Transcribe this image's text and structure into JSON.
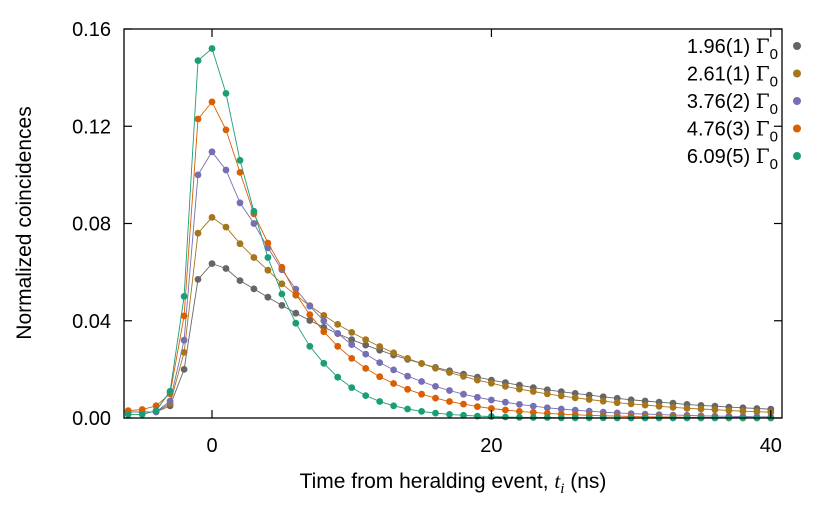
{
  "chart_data": {
    "type": "scatter",
    "xlabel_main": "Time from heralding event, ",
    "xlabel_var": "t",
    "xlabel_sub": "i",
    "xlabel_unit": " (ns)",
    "ylabel": "Normalized coincidences",
    "xlim": [
      -6.3,
      40.8
    ],
    "ylim": [
      0,
      0.16
    ],
    "x_ticks": [
      0,
      20,
      40
    ],
    "x_tick_labels": [
      "0",
      "20",
      "40"
    ],
    "y_ticks": [
      0,
      0.04,
      0.08,
      0.12,
      0.16
    ],
    "y_tick_labels": [
      "0.00",
      "0.04",
      "0.08",
      "0.12",
      "0.16"
    ],
    "grid": false,
    "legend_position": "top-right",
    "legend_symbol": "Γ",
    "legend_subscript": "0",
    "x": [
      -6,
      -5,
      -4,
      -3,
      -2,
      -1,
      0,
      1,
      2,
      3,
      4,
      5,
      6,
      7,
      8,
      9,
      10,
      11,
      12,
      13,
      14,
      15,
      16,
      17,
      18,
      19,
      20,
      21,
      22,
      23,
      24,
      25,
      26,
      27,
      28,
      29,
      30,
      31,
      32,
      33,
      34,
      35,
      36,
      37,
      38,
      39,
      40
    ],
    "series": [
      {
        "name": "1.96(1)",
        "color": "#666666",
        "values": [
          0.0025,
          0.0025,
          0.0025,
          0.005,
          0.02,
          0.057,
          0.0635,
          0.0615,
          0.0565,
          0.0531,
          0.0497,
          0.0463,
          0.0431,
          0.0401,
          0.0373,
          0.0347,
          0.0322,
          0.03,
          0.0279,
          0.0259,
          0.0241,
          0.0224,
          0.0208,
          0.0194,
          0.018,
          0.0168,
          0.0156,
          0.0145,
          0.0135,
          0.0125,
          0.0116,
          0.0108,
          0.0101,
          0.0094,
          0.0087,
          0.0081,
          0.0075,
          0.007,
          0.0065,
          0.0061,
          0.0056,
          0.0052,
          0.0049,
          0.0045,
          0.0042,
          0.0039,
          0.0036
        ]
      },
      {
        "name": "2.61(1)",
        "color": "#a6761d",
        "values": [
          0.0025,
          0.0025,
          0.0025,
          0.006,
          0.027,
          0.076,
          0.0825,
          0.0785,
          0.0717,
          0.066,
          0.0608,
          0.0552,
          0.0505,
          0.0462,
          0.0422,
          0.0385,
          0.0352,
          0.0322,
          0.0294,
          0.0268,
          0.0245,
          0.0224,
          0.0205,
          0.0187,
          0.0171,
          0.0156,
          0.0143,
          0.013,
          0.0119,
          0.0109,
          0.0099,
          0.0091,
          0.0083,
          0.0076,
          0.0069,
          0.0063,
          0.0058,
          0.0053,
          0.0048,
          0.0044,
          0.004,
          0.0037,
          0.0034,
          0.0031,
          0.0028,
          0.0026,
          0.0024
        ]
      },
      {
        "name": "3.76(2)",
        "color": "#7570b3",
        "values": [
          0.0025,
          0.0025,
          0.0025,
          0.007,
          0.032,
          0.1,
          0.1095,
          0.102,
          0.0885,
          0.08,
          0.07,
          0.061,
          0.053,
          0.046,
          0.04,
          0.0348,
          0.0302,
          0.0263,
          0.0228,
          0.0198,
          0.0172,
          0.015,
          0.013,
          0.0113,
          0.0098,
          0.0085,
          0.0074,
          0.0065,
          0.0056,
          0.0049,
          0.0042,
          0.0037,
          0.0032,
          0.0028,
          0.0024,
          0.0021,
          0.0018,
          0.0016,
          0.0014,
          0.0012,
          0.0011,
          0.0009,
          0.0008,
          0.0007,
          0.0006,
          0.0005,
          0.0004
        ]
      },
      {
        "name": "4.76(3)",
        "color": "#d95f02",
        "values": [
          0.003,
          0.0035,
          0.005,
          0.01,
          0.042,
          0.123,
          0.13,
          0.1185,
          0.101,
          0.084,
          0.072,
          0.062,
          0.051,
          0.0425,
          0.0355,
          0.0295,
          0.0245,
          0.0204,
          0.017,
          0.0142,
          0.0118,
          0.0098,
          0.0082,
          0.0068,
          0.0057,
          0.0047,
          0.0039,
          0.0033,
          0.0027,
          0.0023,
          0.0019,
          0.0016,
          0.0013,
          0.0011,
          0.0009,
          0.0008,
          0.0006,
          0.0005,
          0.0004,
          0.0004,
          0.0003,
          0.0003,
          0.0002,
          0.0002,
          0.0002,
          0.0001,
          0.0001
        ]
      },
      {
        "name": "6.09(5)",
        "color": "#1b9e77",
        "values": [
          0.0015,
          0.0015,
          0.003,
          0.011,
          0.05,
          0.147,
          0.152,
          0.1335,
          0.106,
          0.085,
          0.066,
          0.051,
          0.039,
          0.0295,
          0.0225,
          0.0168,
          0.0125,
          0.0092,
          0.0068,
          0.005,
          0.0037,
          0.0027,
          0.002,
          0.0015,
          0.0011,
          0.0008,
          0.0006,
          0.0004,
          0.0003,
          0.0002,
          0.0002,
          0.0001,
          0.0001,
          0.0001,
          0.0001,
          0.0,
          0.0,
          0.0,
          0.0,
          0.0,
          0.0,
          0.0,
          0.0,
          0.0,
          0.0,
          0.0,
          0.0
        ]
      }
    ]
  }
}
